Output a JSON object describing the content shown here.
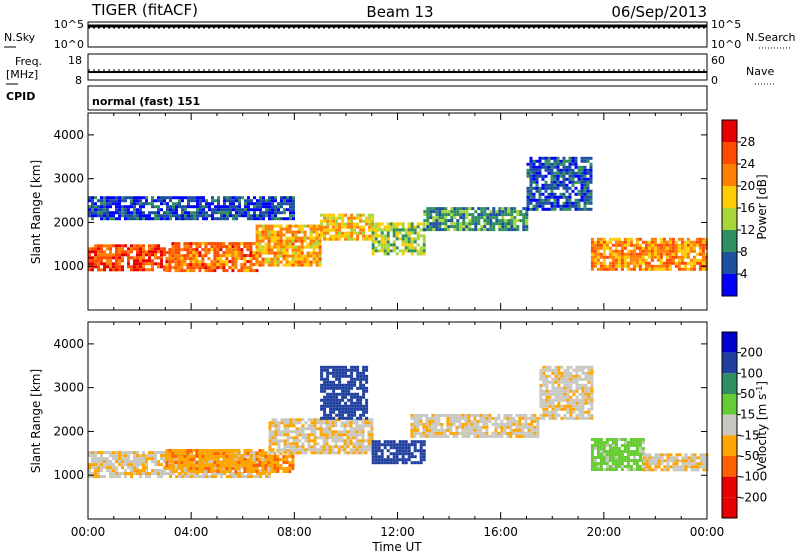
{
  "header": {
    "radar": "TIGER (fitACF)",
    "beam": "Beam 13",
    "date": "06/Sep/2013"
  },
  "summary_panels": {
    "nsky": {
      "left_label": "N.Sky",
      "left_ticks": [
        "10^5",
        "10^0"
      ],
      "right_ticks": [
        "10^5",
        "10^0"
      ],
      "right_label": "N.Search"
    },
    "freq": {
      "left_label_1": "Freq.",
      "left_label_2": "[MHz]",
      "left_ticks": [
        "18",
        "8"
      ],
      "right_ticks": [
        "60",
        "0"
      ],
      "right_label": "Nave"
    },
    "cpid": {
      "left_label": "CPID",
      "text": "normal (fast) 151"
    }
  },
  "chart_data": [
    {
      "type": "heatmap",
      "name": "power",
      "xlabel": "",
      "ylabel": "Slant Range [km]",
      "x_range_hours": [
        0,
        24
      ],
      "ylim": [
        0,
        4500
      ],
      "y_ticks": [
        1000,
        2000,
        3000,
        4000
      ],
      "colorbar": {
        "label": "Power [dB]",
        "ticks": [
          "4",
          "8",
          "12",
          "16",
          "20",
          "24",
          "28"
        ],
        "colors": [
          "#0000ff",
          "#1e50a0",
          "#2f8f5e",
          "#a6d63a",
          "#ffcc00",
          "#ff7f00",
          "#ff4a00",
          "#e60000"
        ]
      },
      "bands": [
        {
          "from_h": 0.0,
          "to_h": 3.0,
          "range_km": [
            950,
            1500
          ],
          "value_db": 26
        },
        {
          "from_h": 3.0,
          "to_h": 6.5,
          "range_km": [
            900,
            1550
          ],
          "value_db": 24
        },
        {
          "from_h": 6.5,
          "to_h": 9.0,
          "range_km": [
            1050,
            1950
          ],
          "value_db": 20
        },
        {
          "from_h": 9.0,
          "to_h": 11.0,
          "range_km": [
            1600,
            2200
          ],
          "value_db": 18
        },
        {
          "from_h": 11.0,
          "to_h": 13.0,
          "range_km": [
            1300,
            2000
          ],
          "value_db": 14
        },
        {
          "from_h": 13.0,
          "to_h": 17.0,
          "range_km": [
            1850,
            2350
          ],
          "value_db": 10
        },
        {
          "from_h": 17.0,
          "to_h": 19.5,
          "range_km": [
            2300,
            3500
          ],
          "value_db": 6
        },
        {
          "from_h": 19.5,
          "to_h": 24.0,
          "range_km": [
            950,
            1650
          ],
          "value_db": 22
        },
        {
          "from_h": 0.0,
          "to_h": 8.0,
          "range_km": [
            2100,
            2600
          ],
          "value_db": 5
        }
      ]
    },
    {
      "type": "heatmap",
      "name": "velocity",
      "xlabel": "Time UT",
      "ylabel": "Slant Range [km]",
      "x_range_hours": [
        0,
        24
      ],
      "x_ticks": [
        "00:00",
        "04:00",
        "08:00",
        "12:00",
        "16:00",
        "20:00",
        "00:00"
      ],
      "ylim": [
        0,
        4500
      ],
      "y_ticks": [
        1000,
        2000,
        3000,
        4000
      ],
      "colorbar": {
        "label": "Velocity [m s",
        "label_sup": "-1",
        "label_end": "]",
        "ticks": [
          "200",
          "100",
          "50",
          "15",
          "-15",
          "-50",
          "-100",
          "-200"
        ],
        "colors": [
          "#0000cc",
          "#2040a0",
          "#2f8f5e",
          "#66cc33",
          "#c8c8c0",
          "#ffa500",
          "#ff6000",
          "#e60000",
          "#e60000"
        ]
      },
      "bands": [
        {
          "from_h": 0.0,
          "to_h": 7.0,
          "range_km": [
            950,
            1550
          ],
          "value_ms": -10
        },
        {
          "from_h": 3.0,
          "to_h": 8.0,
          "range_km": [
            1100,
            1600
          ],
          "value_ms": -40
        },
        {
          "from_h": 7.0,
          "to_h": 11.0,
          "range_km": [
            1500,
            2300
          ],
          "value_ms": -10
        },
        {
          "from_h": 11.0,
          "to_h": 13.0,
          "range_km": [
            1300,
            1800
          ],
          "value_ms": 180
        },
        {
          "from_h": 9.0,
          "to_h": 10.8,
          "range_km": [
            2300,
            3500
          ],
          "value_ms": 180
        },
        {
          "from_h": 12.5,
          "to_h": 17.5,
          "range_km": [
            1900,
            2400
          ],
          "value_ms": -5
        },
        {
          "from_h": 17.5,
          "to_h": 19.5,
          "range_km": [
            2300,
            3500
          ],
          "value_ms": -5
        },
        {
          "from_h": 19.5,
          "to_h": 21.5,
          "range_km": [
            1150,
            1850
          ],
          "value_ms": 30
        },
        {
          "from_h": 21.5,
          "to_h": 24.0,
          "range_km": [
            1100,
            1500
          ],
          "value_ms": -10
        }
      ]
    }
  ]
}
